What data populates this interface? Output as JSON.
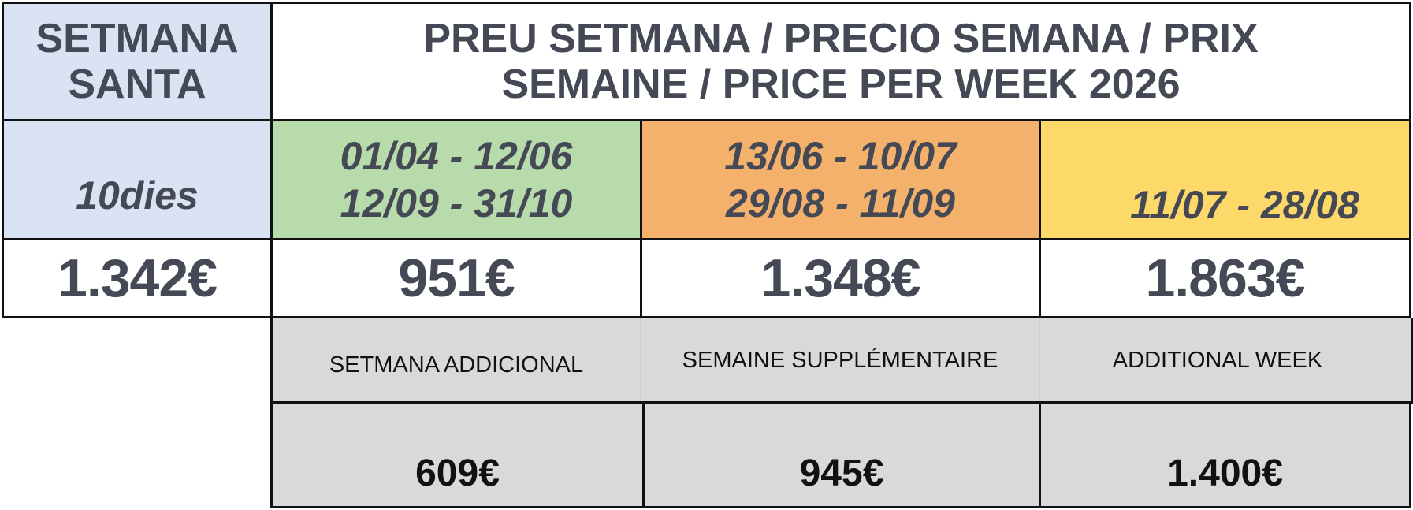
{
  "left": {
    "title": "SETMANA SANTA",
    "duration": "10dies",
    "price": "1.342€"
  },
  "header": {
    "title": "PREU SETMANA / PRECIO SEMANA / PRIX SEMAINE / PRICE PER WEEK 2026"
  },
  "seasons": [
    {
      "dates_1": "01/04 - 12/06",
      "dates_2": "12/09 - 31/10",
      "price": "951€",
      "color": "#b7dbaa"
    },
    {
      "dates_1": "13/06 - 10/07",
      "dates_2": "29/08 - 11/09",
      "price": "1.348€",
      "color": "#f4b16b"
    },
    {
      "dates_1": "",
      "dates_2": "11/07 - 28/08",
      "price": "1.863€",
      "color": "#fdd96a"
    }
  ],
  "additional": [
    {
      "label": "SETMANA ADDICIONAL",
      "price": "609€"
    },
    {
      "label": "SEMAINE SUPPLÉMENTAIRE",
      "price": "945€"
    },
    {
      "label": "ADDITIONAL WEEK",
      "price": "1.400€"
    }
  ],
  "colors": {
    "left_bg": "#dae3f3",
    "gray_bg": "#d9d9d9",
    "text": "#444955"
  }
}
